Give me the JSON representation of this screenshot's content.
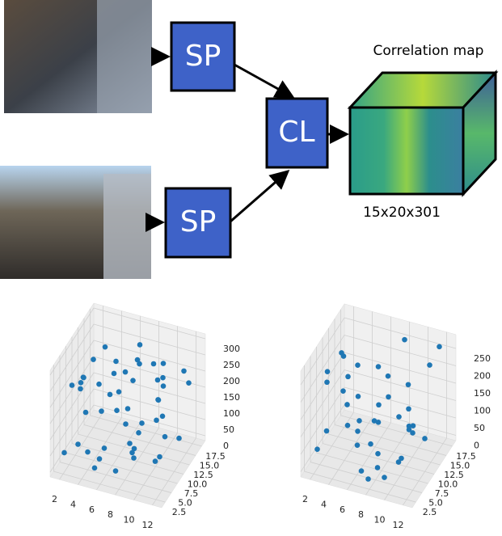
{
  "diagram": {
    "sp_top": "SP",
    "sp_bottom": "SP",
    "cl": "CL",
    "cube_title": "Correlation map",
    "cube_size": "15x20x301"
  },
  "chart_data": [
    {
      "type": "scatter3d",
      "color": "#1f77b4",
      "x": [
        2,
        3,
        5,
        7,
        9,
        11,
        12,
        4,
        6,
        8,
        10,
        3,
        5,
        7,
        9,
        11,
        2,
        4,
        6,
        8,
        10,
        12,
        3,
        5,
        7,
        9,
        11,
        4,
        6,
        8,
        10,
        12,
        2,
        5,
        7,
        9,
        3,
        6,
        8,
        11,
        1,
        4,
        7,
        10,
        12,
        5,
        8,
        9,
        6,
        3
      ],
      "y": [
        3,
        8,
        12,
        15,
        5,
        9,
        14,
        17,
        2,
        7,
        11,
        16,
        4,
        10,
        13,
        6,
        15,
        1,
        9,
        18,
        3,
        12,
        7,
        14,
        5,
        17,
        10,
        2,
        16,
        8,
        13,
        4,
        11,
        6,
        9,
        15,
        18,
        3,
        12,
        7,
        10,
        5,
        14,
        1,
        16,
        8,
        11,
        17,
        13,
        6
      ],
      "z": [
        45,
        120,
        210,
        280,
        90,
        160,
        250,
        30,
        300,
        75,
        180,
        230,
        10,
        140,
        260,
        55,
        195,
        110,
        290,
        20,
        170,
        65,
        240,
        130,
        5,
        215,
        85,
        270,
        150,
        35,
        225,
        100,
        185,
        15,
        265,
        125,
        60,
        205,
        80,
        295,
        165,
        40,
        245,
        115,
        190,
        25,
        275,
        145,
        50,
        235
      ],
      "xlim": [
        1,
        13
      ],
      "ylim": [
        1,
        19
      ],
      "zlim": [
        -15,
        315
      ],
      "xticks": [
        2,
        4,
        6,
        8,
        10,
        12
      ],
      "yticks": [
        {
          "value": 2.5,
          "label": "2.5"
        },
        {
          "value": 5,
          "label": "5.0"
        },
        {
          "value": 7.5,
          "label": "7.5"
        },
        {
          "value": 10,
          "label": "10.0"
        },
        {
          "value": 12.5,
          "label": "12.5"
        },
        {
          "value": 15,
          "label": "15.0"
        },
        {
          "value": 17.5,
          "label": "17.5"
        }
      ],
      "zticks": [
        0,
        50,
        100,
        150,
        200,
        250,
        300
      ]
    },
    {
      "type": "scatter3d",
      "color": "#1f77b4",
      "x": [
        2,
        4,
        6,
        8,
        10,
        12,
        3,
        5,
        7,
        9,
        11,
        2,
        4,
        6,
        8,
        10,
        12,
        3,
        5,
        7,
        9,
        11,
        1,
        6,
        8,
        10,
        4,
        7,
        12,
        9,
        3,
        5,
        11,
        8,
        6,
        10,
        2,
        7,
        12,
        4
      ],
      "y": [
        4,
        9,
        14,
        2,
        7,
        12,
        17,
        5,
        10,
        15,
        3,
        8,
        13,
        1,
        6,
        11,
        16,
        4,
        9,
        14,
        2,
        7,
        12,
        18,
        3,
        8,
        13,
        10,
        5,
        15,
        11,
        16,
        9,
        17,
        6,
        1,
        14,
        3,
        10,
        7
      ],
      "z": [
        40,
        210,
        90,
        20,
        160,
        270,
        60,
        120,
        250,
        30,
        80,
        190,
        10,
        230,
        50,
        140,
        280,
        100,
        20,
        180,
        60,
        260,
        170,
        70,
        110,
        30,
        200,
        90,
        150,
        40,
        240,
        15,
        120,
        260,
        130,
        50,
        210,
        25,
        80,
        190
      ],
      "xlim": [
        1,
        13
      ],
      "ylim": [
        1,
        19
      ],
      "zlim": [
        -15,
        290
      ],
      "xticks": [
        2,
        4,
        6,
        8,
        10,
        12
      ],
      "yticks": [
        {
          "value": 2.5,
          "label": "2.5"
        },
        {
          "value": 5,
          "label": "5.0"
        },
        {
          "value": 7.5,
          "label": "7.5"
        },
        {
          "value": 10,
          "label": "10.0"
        },
        {
          "value": 12.5,
          "label": "12.5"
        },
        {
          "value": 15,
          "label": "15.0"
        },
        {
          "value": 17.5,
          "label": "17.5"
        }
      ],
      "zticks": [
        0,
        50,
        100,
        150,
        200,
        250
      ]
    }
  ]
}
